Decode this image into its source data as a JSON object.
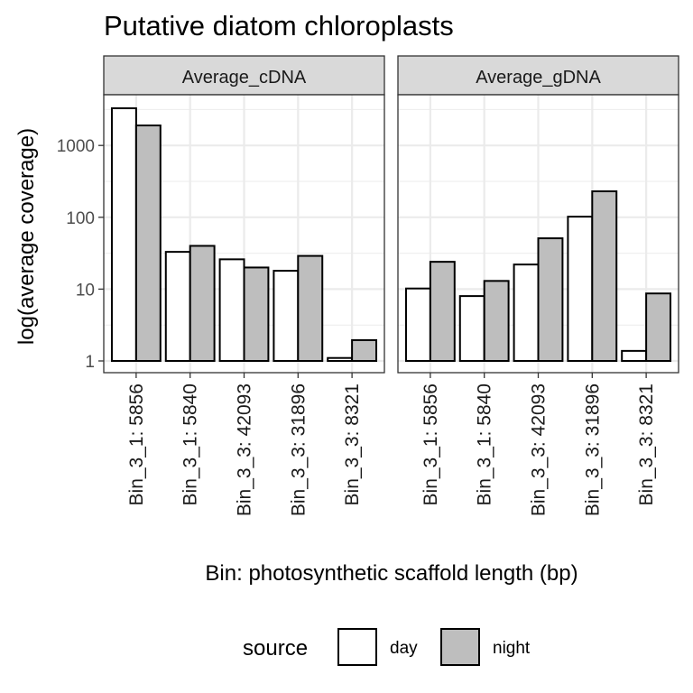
{
  "chart_data": {
    "type": "bar",
    "title": "Putative diatom chloroplasts",
    "xlabel": "Bin: photosynthetic scaffold length (bp)",
    "ylabel": "log(average coverage)",
    "y_scale": "log10",
    "ylim": [
      0.75,
      5200
    ],
    "yticks": [
      1,
      10,
      100,
      1000
    ],
    "ytick_labels": [
      "1",
      "10",
      "100",
      "1000"
    ],
    "grid": true,
    "legend": {
      "title": "source",
      "position": "bottom",
      "entries": [
        {
          "label": "day",
          "color": "#ffffff"
        },
        {
          "label": "night",
          "color": "#bebebe"
        }
      ]
    },
    "categories": [
      "Bin_3_1: 5856",
      "Bin_3_1: 5840",
      "Bin_3_3: 42093",
      "Bin_3_3: 31896",
      "Bin_3_3: 8321"
    ],
    "panels": [
      {
        "name": "Average_cDNA",
        "series": [
          {
            "name": "day",
            "values": [
              3300,
              33,
              26,
              18,
              1.1
            ]
          },
          {
            "name": "night",
            "values": [
              1900,
              40,
              20,
              29,
              1.95
            ]
          }
        ]
      },
      {
        "name": "Average_gDNA",
        "series": [
          {
            "name": "day",
            "values": [
              10.2,
              8.0,
              22,
              102,
              1.38
            ]
          },
          {
            "name": "night",
            "values": [
              24,
              13,
              51,
              230,
              8.7
            ]
          }
        ]
      }
    ]
  },
  "colors": {
    "day": "#ffffff",
    "night": "#bebebe",
    "strip": "#d9d9d9",
    "grid": "#ebebeb",
    "border": "#333333"
  }
}
